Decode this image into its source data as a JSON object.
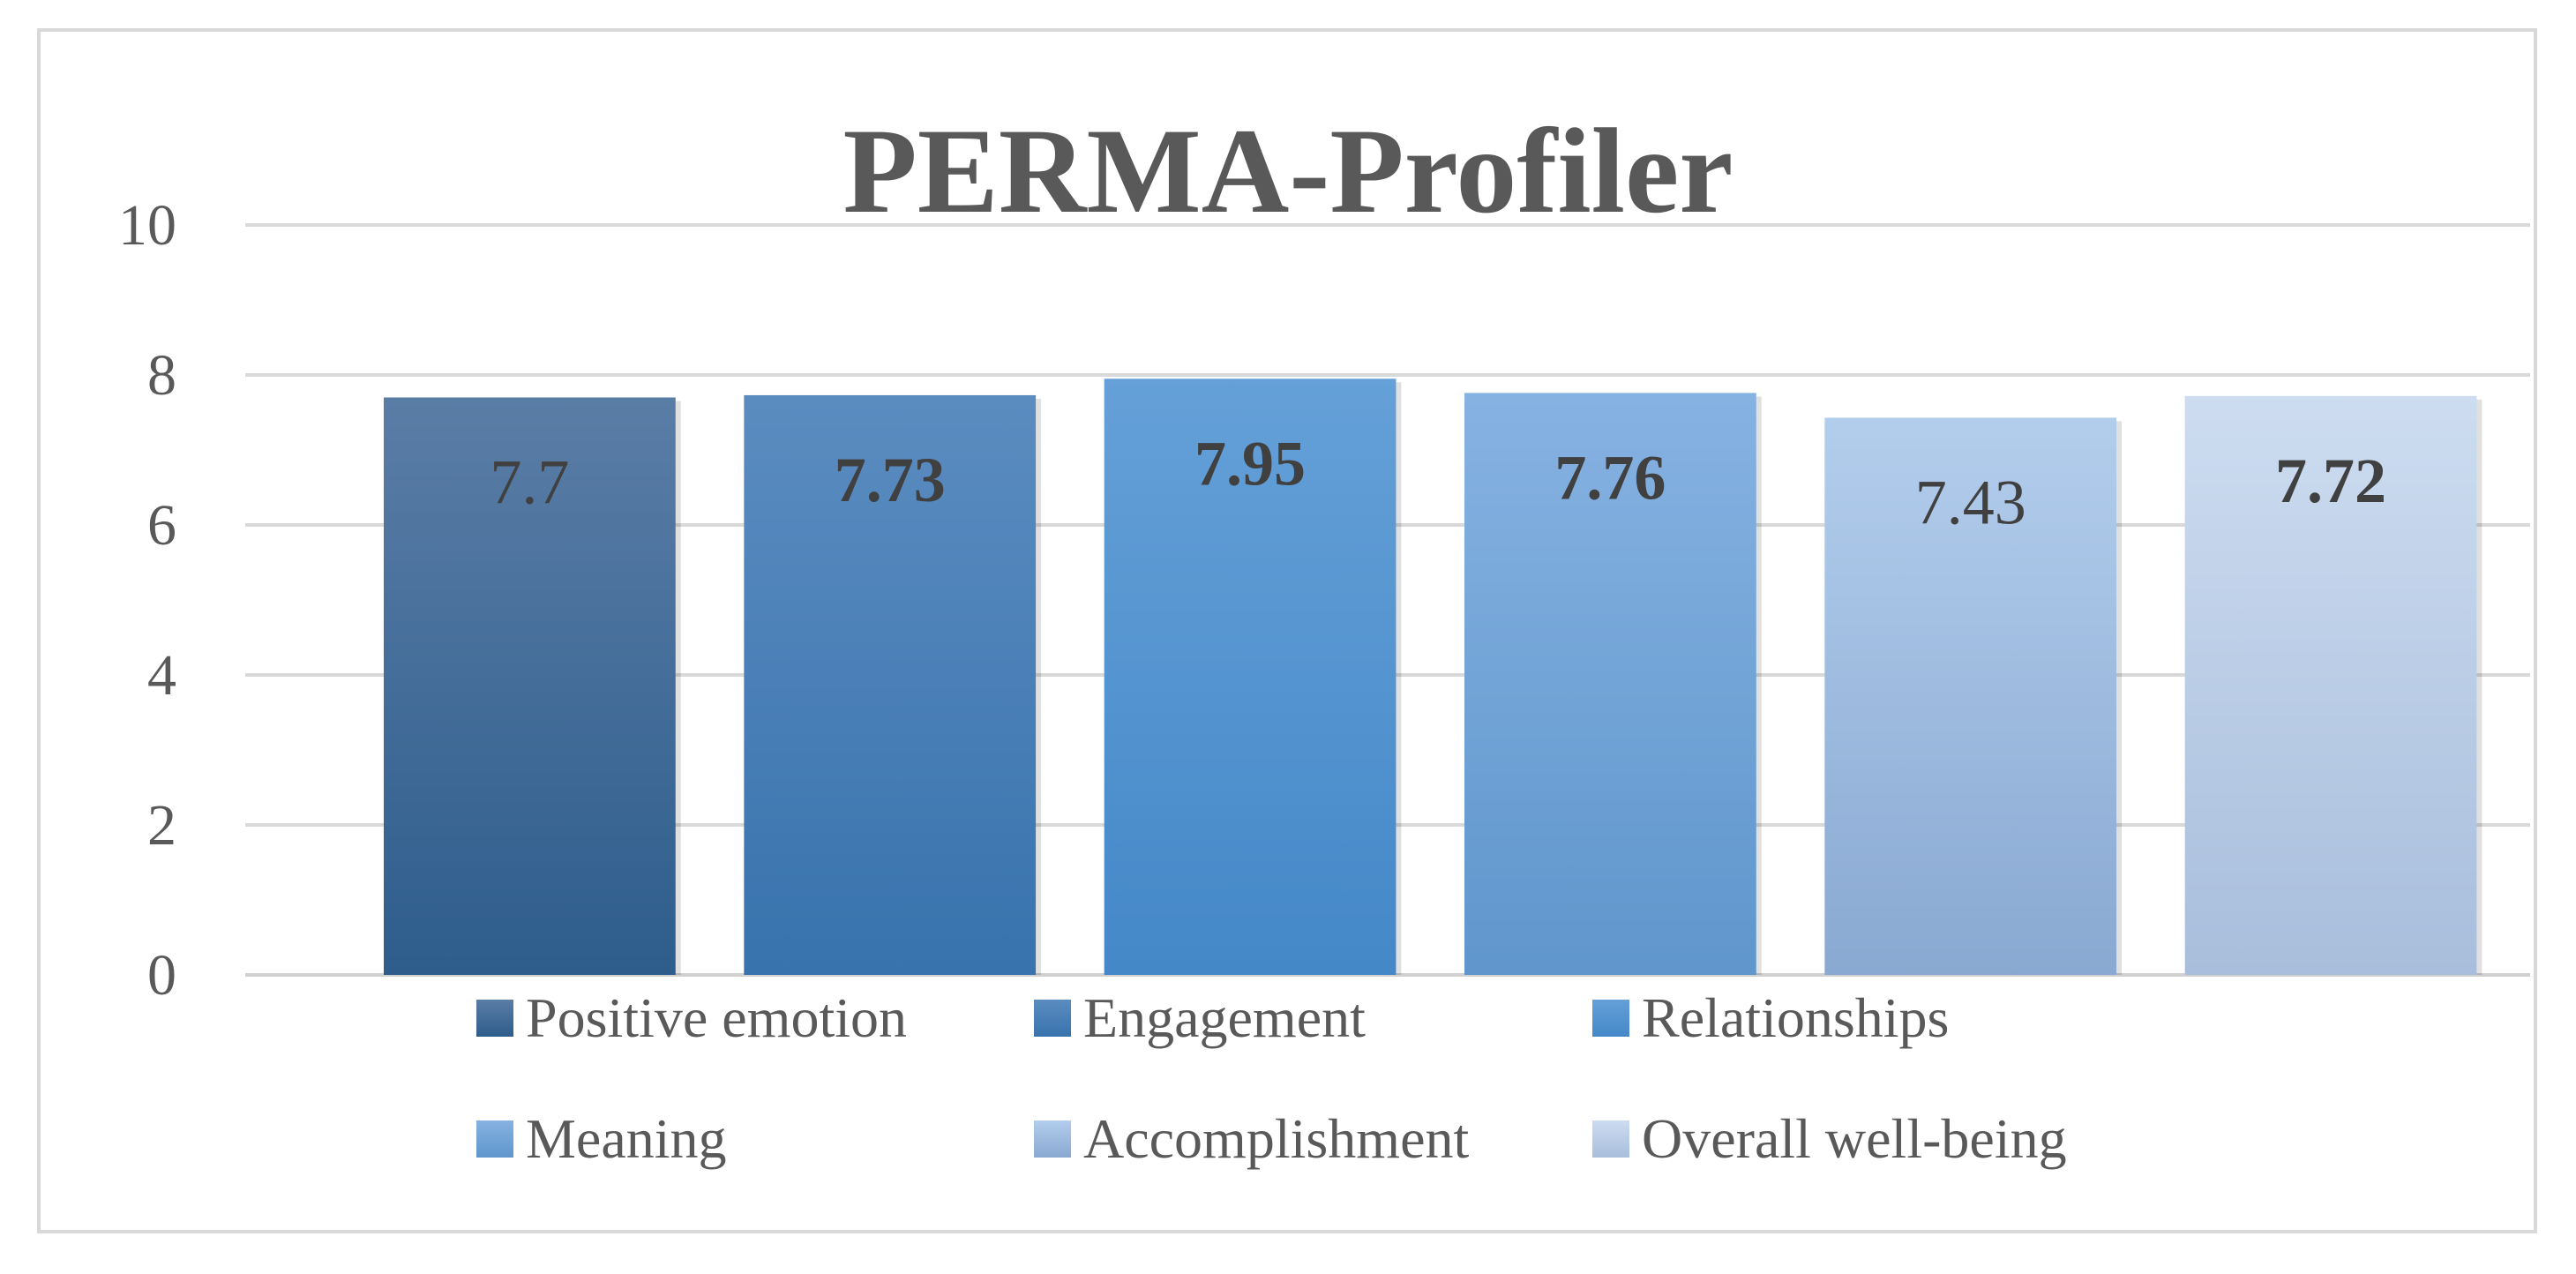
{
  "chart_data": {
    "type": "bar",
    "title": "PERMA-Profiler",
    "xlabel": "",
    "ylabel": "",
    "ylim": [
      0,
      10
    ],
    "yticks": [
      "0",
      "2",
      "4",
      "6",
      "8",
      "10"
    ],
    "grid": true,
    "legend_position": "bottom",
    "categories": [
      "Positive emotion",
      "Engagement",
      "Relationships",
      "Meaning",
      "Accomplishment",
      "Overall well-being"
    ],
    "values": [
      7.7,
      7.73,
      7.95,
      7.76,
      7.43,
      7.72
    ],
    "data_labels": [
      "7.7",
      "7.73",
      "7.95",
      "7.76",
      "7.43",
      "7.72"
    ],
    "label_bold": [
      false,
      true,
      true,
      true,
      false,
      true
    ],
    "colors": [
      {
        "top": "#5a7da6",
        "bottom": "#2e5d8c"
      },
      {
        "top": "#5b8cc0",
        "bottom": "#3873ad"
      },
      {
        "top": "#65a0d8",
        "bottom": "#4488c8"
      },
      {
        "top": "#86b2e2",
        "bottom": "#5f96cc"
      },
      {
        "top": "#b3cdec",
        "bottom": "#89a9d2"
      },
      {
        "top": "#cddcf0",
        "bottom": "#a8bedc"
      }
    ]
  }
}
